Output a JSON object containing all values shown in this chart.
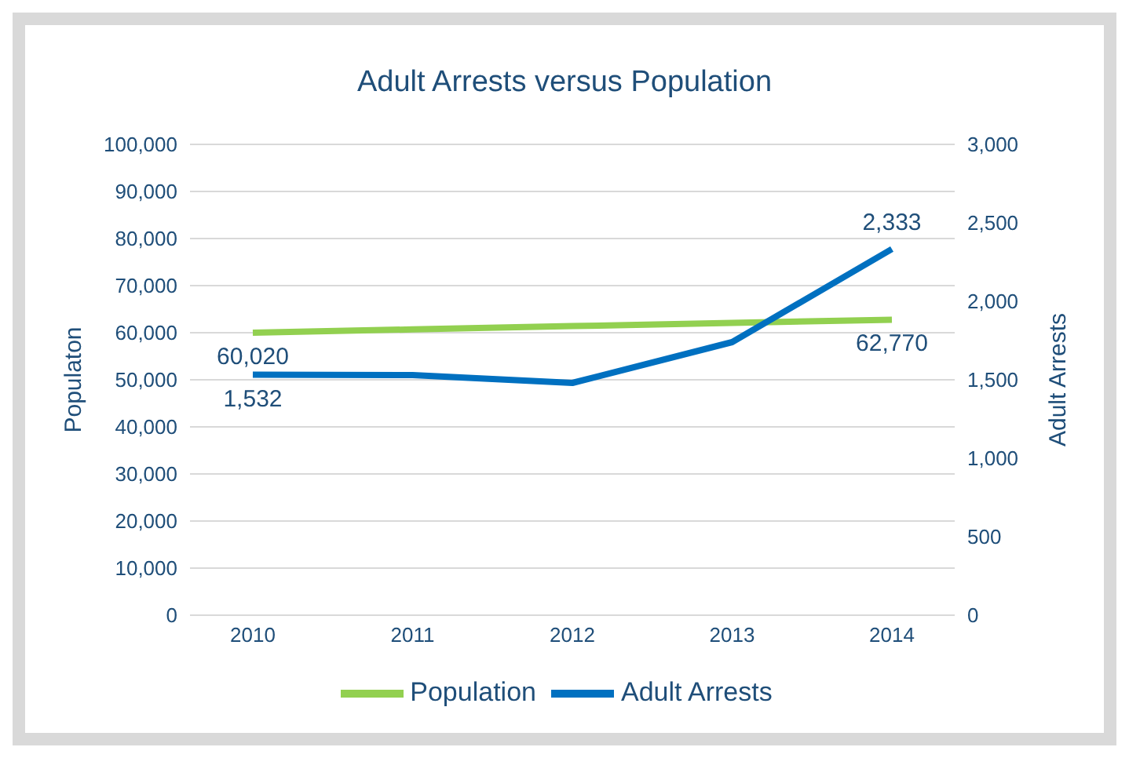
{
  "chart_data": {
    "type": "line",
    "title": "Adult Arrests versus Population",
    "ylabel": "Populaton",
    "y2label": "Adult Arrests",
    "categories": [
      "2010",
      "2011",
      "2012",
      "2013",
      "2014"
    ],
    "series": [
      {
        "name": "Population",
        "color": "#92d050",
        "values": [
          60020,
          60700,
          61400,
          62100,
          62770
        ],
        "value_labels": [
          "60,020",
          null,
          null,
          null,
          "62,770"
        ]
      },
      {
        "name": "Adult Arrests",
        "color": "#0070c0",
        "axis": "y2",
        "values": [
          1532,
          1530,
          1480,
          1740,
          2333
        ],
        "value_labels": [
          "1,532",
          null,
          null,
          null,
          "2,333"
        ]
      }
    ],
    "ylim": [
      0,
      100000
    ],
    "yticks": [
      0,
      {
        "value": 10000,
        "label": "10,000"
      },
      {
        "value": 20000,
        "label": "20,000"
      },
      {
        "value": 30000,
        "label": "30,000"
      },
      {
        "value": 40000,
        "label": "40,000"
      },
      {
        "value": 50000,
        "label": "50,000"
      },
      {
        "value": 60000,
        "label": "60,000"
      },
      {
        "value": 70000,
        "label": "70,000"
      },
      {
        "value": 80000,
        "label": "80,000"
      },
      {
        "value": 90000,
        "label": "90,000"
      },
      {
        "value": 100000,
        "label": "100,000"
      }
    ],
    "y2lim": [
      0,
      3000
    ],
    "y2ticks": [
      0,
      500,
      {
        "value": 1000,
        "label": "1,000"
      },
      {
        "value": 1500,
        "label": "1,500"
      },
      {
        "value": 2000,
        "label": "2,000"
      },
      {
        "value": 2500,
        "label": "2,500"
      },
      {
        "value": 3000,
        "label": "3,000"
      }
    ],
    "grid": "y",
    "legend": "bottom",
    "marker": "none",
    "line_style": "solid"
  }
}
